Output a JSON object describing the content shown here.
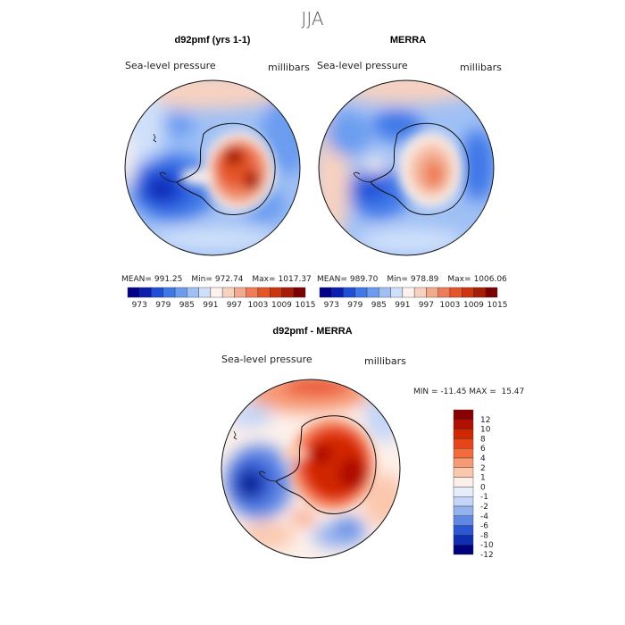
{
  "figure_title": "JJA",
  "chart_data": [
    {
      "type": "heatmap",
      "panel": "top-left",
      "title": "d92pmf (yrs 1-1)",
      "variable_label": "Sea-level pressure",
      "units_label": "millibars",
      "stats": {
        "mean": "991.25",
        "min": "972.74",
        "max": "1017.37"
      },
      "stats_labels": {
        "mean": "MEAN=",
        "min": "Min=",
        "max": "Max="
      },
      "colorbar_tick_labels": [
        "973",
        "979",
        "985",
        "991",
        "997",
        "1003",
        "1009",
        "1015"
      ]
    },
    {
      "type": "heatmap",
      "panel": "top-right",
      "title": "MERRA",
      "variable_label": "Sea-level pressure",
      "units_label": "millibars",
      "stats": {
        "mean": "989.70",
        "min": "978.89",
        "max": "1006.06"
      },
      "stats_labels": {
        "mean": "MEAN=",
        "min": "Min=",
        "max": "Max="
      },
      "colorbar_tick_labels": [
        "973",
        "979",
        "985",
        "991",
        "997",
        "1003",
        "1009",
        "1015"
      ]
    },
    {
      "type": "heatmap",
      "panel": "bottom",
      "title": "d92pmf - MERRA",
      "variable_label": "Sea-level pressure",
      "units_label": "millibars",
      "minmax_text": "MIN = -11.45 MAX =  15.47",
      "colorbar_tick_labels": [
        "12",
        "10",
        "8",
        "6",
        "4",
        "2",
        "1",
        "0",
        "-1",
        "-2",
        "-4",
        "-6",
        "-8",
        "-10",
        "-12"
      ]
    }
  ],
  "colors": {
    "full_scale": [
      "#00008b",
      "#0a1fb0",
      "#1f4fd8",
      "#3f78e8",
      "#6b9cf0",
      "#9fc0f5",
      "#cfe0fa",
      "#fdf3ec",
      "#f8d2c0",
      "#f3aa8c",
      "#ee7c56",
      "#e45528",
      "#cc3510",
      "#a81d05",
      "#7d0000"
    ],
    "diff_scale": [
      "#8b0000",
      "#b01000",
      "#d02800",
      "#e8441a",
      "#f46b3c",
      "#f79a74",
      "#fbc7ad",
      "#fdf0ea",
      "#e6eefc",
      "#c4d6f7",
      "#93b2ef",
      "#5f87e6",
      "#2c57d4",
      "#0f2fb0",
      "#000080"
    ],
    "land_outline": "#111111"
  }
}
